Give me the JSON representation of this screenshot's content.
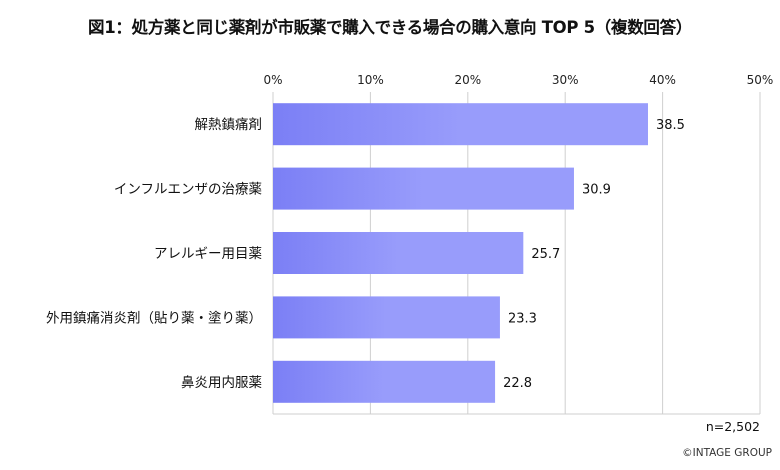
{
  "chart_data": {
    "type": "bar",
    "orientation": "horizontal",
    "title": "図1：処方薬と同じ薬剤が市販薬で購入できる場合の購入意向 TOP 5（複数回答）",
    "categories": [
      "解熱鎮痛剤",
      "インフルエンザの治療薬",
      "アレルギー用目薬",
      "外用鎮痛消炎剤（貼り薬・塗り薬）",
      "鼻炎用内服薬"
    ],
    "values": [
      38.5,
      30.9,
      25.7,
      23.3,
      22.8
    ],
    "value_labels": [
      "38.5",
      "30.9",
      "25.7",
      "23.3",
      "22.8"
    ],
    "xlim": [
      0,
      50
    ],
    "xticks": [
      0,
      10,
      20,
      30,
      40,
      50
    ],
    "xtick_labels": [
      "0%",
      "10%",
      "20%",
      "30%",
      "40%",
      "50%"
    ],
    "xlabel": "",
    "ylabel": "",
    "grid": true,
    "bar_color_start": "#7b7ff5",
    "bar_color_end": "#989cfb"
  },
  "note": "n=2,502",
  "copyright": "©INTAGE GROUP"
}
